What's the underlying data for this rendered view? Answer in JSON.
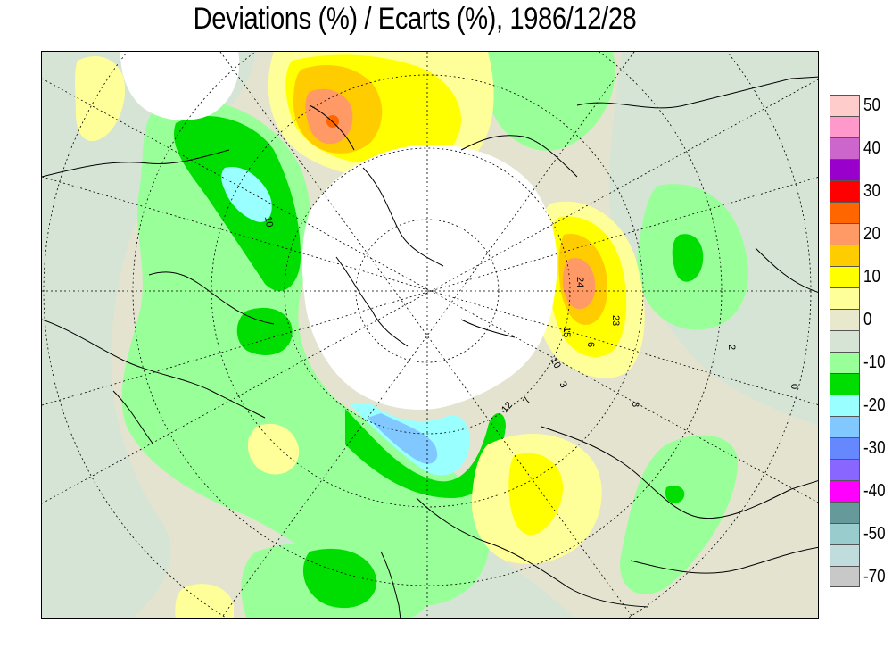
{
  "title": "Deviations (%) / Ecarts (%), 1986/12/28",
  "legend": {
    "bins": [
      {
        "label": "50",
        "color": "#ffcccc"
      },
      {
        "label": "",
        "color": "#ff99cc"
      },
      {
        "label": "40",
        "color": "#cc66cc"
      },
      {
        "label": "",
        "color": "#9900cc"
      },
      {
        "label": "30",
        "color": "#ff0000"
      },
      {
        "label": "",
        "color": "#ff6600"
      },
      {
        "label": "20",
        "color": "#ff9966"
      },
      {
        "label": "",
        "color": "#ffcc00"
      },
      {
        "label": "10",
        "color": "#ffff00"
      },
      {
        "label": "",
        "color": "#ffff99"
      },
      {
        "label": "0",
        "color": "#e8e8cc"
      },
      {
        "label": "",
        "color": "#d6e4d6"
      },
      {
        "label": "-10",
        "color": "#99ff99"
      },
      {
        "label": "",
        "color": "#00dd00"
      },
      {
        "label": "-20",
        "color": "#99ffff"
      },
      {
        "label": "",
        "color": "#80c8ff"
      },
      {
        "label": "-30",
        "color": "#6688ff"
      },
      {
        "label": "",
        "color": "#8866ff"
      },
      {
        "label": "-40",
        "color": "#ff00ff"
      },
      {
        "label": "",
        "color": "#669999"
      },
      {
        "label": "-50",
        "color": "#99cccc"
      },
      {
        "label": "",
        "color": "#c0dcdc"
      },
      {
        "label": "-70",
        "color": "#c8c8c8"
      }
    ]
  },
  "contour_labels": [
    "24",
    "23",
    "15",
    "6",
    "10",
    "3",
    "12",
    "7",
    "8",
    "10",
    "2",
    "0"
  ],
  "map_features": {
    "projection": "north polar stereographic",
    "missing_region": "polar cap (white, no data)"
  }
}
